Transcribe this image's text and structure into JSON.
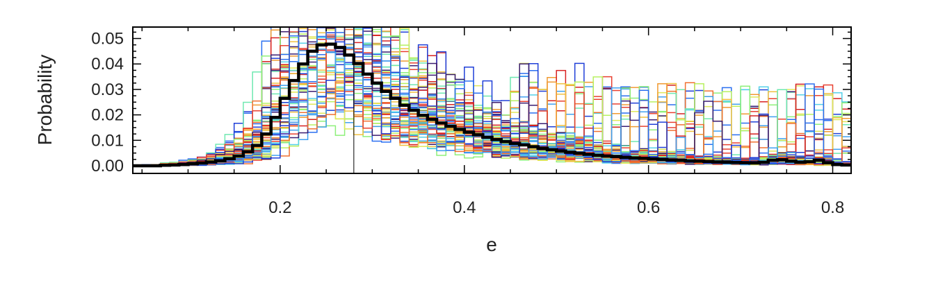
{
  "chart_data": {
    "type": "line",
    "xlabel": "e",
    "ylabel": "Probability",
    "xlim": [
      0.04,
      0.82
    ],
    "ylim": [
      -0.003,
      0.0545
    ],
    "x_ticks": [
      0.2,
      0.4,
      0.6,
      0.8
    ],
    "x_tick_labels": [
      "0.2",
      "0.4",
      "0.6",
      "0.8"
    ],
    "y_ticks": [
      0.0,
      0.01,
      0.02,
      0.03,
      0.04,
      0.05
    ],
    "y_tick_labels": [
      "0.00",
      "0.01",
      "0.02",
      "0.03",
      "0.04",
      "0.05"
    ],
    "grid": false,
    "legend": "none",
    "vertical_reference_line": 0.28,
    "step_histogram": true,
    "bin_width": 0.01,
    "x": [
      0.045,
      0.055,
      0.065,
      0.075,
      0.085,
      0.095,
      0.105,
      0.115,
      0.125,
      0.135,
      0.145,
      0.155,
      0.165,
      0.175,
      0.185,
      0.195,
      0.205,
      0.215,
      0.225,
      0.235,
      0.245,
      0.255,
      0.265,
      0.275,
      0.285,
      0.295,
      0.305,
      0.315,
      0.325,
      0.335,
      0.345,
      0.355,
      0.365,
      0.375,
      0.385,
      0.395,
      0.405,
      0.415,
      0.425,
      0.435,
      0.445,
      0.455,
      0.465,
      0.475,
      0.485,
      0.495,
      0.505,
      0.515,
      0.525,
      0.535,
      0.545,
      0.555,
      0.565,
      0.575,
      0.585,
      0.595,
      0.605,
      0.615,
      0.625,
      0.635,
      0.645,
      0.655,
      0.665,
      0.675,
      0.685,
      0.695,
      0.705,
      0.715,
      0.725,
      0.735,
      0.745,
      0.755,
      0.765,
      0.775,
      0.785,
      0.795,
      0.805,
      0.815
    ],
    "combined_series": {
      "name": "",
      "color": "#000000",
      "values": [
        0.0,
        0.0,
        0.0,
        0.0002,
        0.0003,
        0.0005,
        0.0008,
        0.0011,
        0.0015,
        0.002,
        0.0028,
        0.0038,
        0.0055,
        0.008,
        0.0125,
        0.019,
        0.0265,
        0.0335,
        0.04,
        0.045,
        0.0475,
        0.0478,
        0.0465,
        0.0435,
        0.0402,
        0.036,
        0.0325,
        0.0292,
        0.0265,
        0.0238,
        0.0218,
        0.0198,
        0.0182,
        0.0168,
        0.0155,
        0.0143,
        0.0132,
        0.0122,
        0.0112,
        0.0103,
        0.0095,
        0.0088,
        0.0082,
        0.0075,
        0.0069,
        0.0063,
        0.0058,
        0.0053,
        0.0049,
        0.0045,
        0.0041,
        0.0038,
        0.0036,
        0.0033,
        0.0031,
        0.0029,
        0.0027,
        0.0025,
        0.0023,
        0.0021,
        0.0019,
        0.0018,
        0.0017,
        0.0015,
        0.0014,
        0.0013,
        0.0012,
        0.0011,
        0.0014,
        0.0022,
        0.0024,
        0.0018,
        0.0014,
        0.0016,
        0.0022,
        0.0012,
        0.0005,
        0.0003
      ]
    },
    "individual_series_colors": [
      "#3a1c71",
      "#1f3fd8",
      "#2a6ff0",
      "#3fa0f0",
      "#55d0e8",
      "#6ee8b0",
      "#8ef07a",
      "#b8f060",
      "#e0e85a",
      "#f0c040",
      "#f09a30",
      "#f07030",
      "#e84030",
      "#d82020"
    ]
  }
}
